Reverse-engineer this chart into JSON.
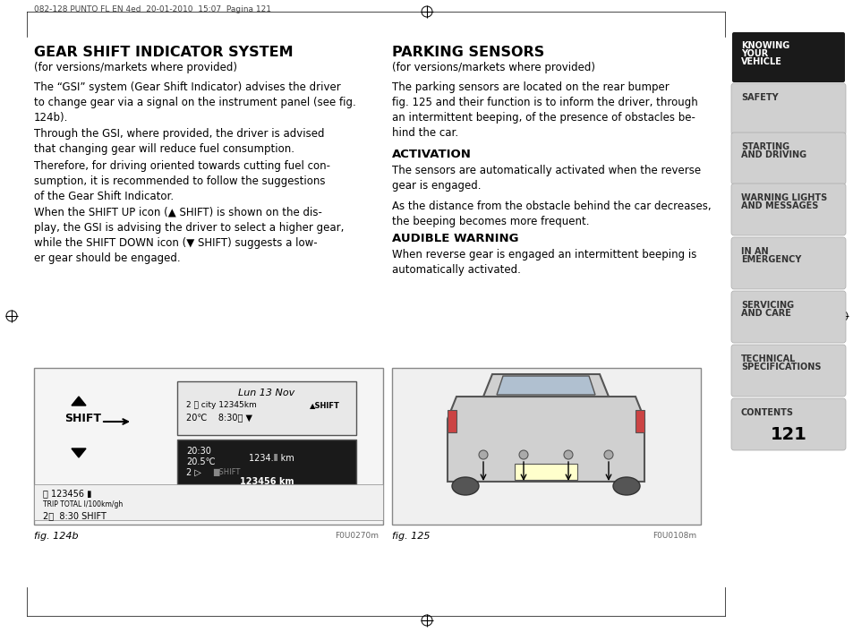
{
  "page_bg": "#ffffff",
  "header_text": "082-128 PUNTO FL EN 4ed  20-01-2010  15:07  Pagina 121",
  "left_section_title": "GEAR SHIFT INDICATOR SYSTEM",
  "left_subtitle": "(for versions/markets where provided)",
  "left_paragraphs": [
    "The “GSI” system (Gear Shift Indicator) advises the driver\nto change gear via a signal on the instrument panel (see fig.\n124b).",
    "Through the GSI, where provided, the driver is advised\nthat changing gear will reduce fuel consumption.",
    "Therefore, for driving oriented towards cutting fuel con-\nsumption, it is recommended to follow the suggestions\nof the Gear Shift Indicator.",
    "When the SHIFT UP icon (▲ SHIFT) is shown on the dis-\nplay, the GSI is advising the driver to select a higher gear,\nwhile the SHIFT DOWN icon (▼ SHIFT) suggests a low-\ner gear should be engaged."
  ],
  "right_section_title": "PARKING SENSORS",
  "right_subtitle": "(for versions/markets where provided)",
  "right_paragraph": "The parking sensors are located on the rear bumper\nfig. 125 and their function is to inform the driver, through\nan intermittent beeping, of the presence of obstacles be-\nhind the car.",
  "activation_title": "ACTIVATION",
  "activation_paragraphs": [
    "The sensors are automatically activated when the reverse\ngear is engaged.",
    "As the distance from the obstacle behind the car decreases,\nthe beeping becomes more frequent."
  ],
  "audible_title": "AUDIBLE WARNING",
  "audible_paragraph": "When reverse gear is engaged an intermittent beeping is\nautomatically activated.",
  "fig124b_label": "fig. 124b",
  "fig124b_code": "F0U0270m",
  "fig125_label": "fig. 125",
  "fig125_code": "F0U0108m",
  "page_number": "121",
  "sidebar_items": [
    {
      "text": "KNOWING\nYOUR\nVEHICLE",
      "active": true
    },
    {
      "text": "SAFETY",
      "active": false
    },
    {
      "text": "STARTING\nAND DRIVING",
      "active": false
    },
    {
      "text": "WARNING LIGHTS\nAND MESSAGES",
      "active": false
    },
    {
      "text": "IN AN\nEMERGENCY",
      "active": false
    },
    {
      "text": "SERVICING\nAND CARE",
      "active": false
    },
    {
      "text": "TECHNICAL\nSPECIFICATIONS",
      "active": false
    },
    {
      "text": "CONTENTS",
      "active": false
    }
  ],
  "sidebar_active_bg": "#1a1a1a",
  "sidebar_inactive_bg": "#d0d0d0",
  "sidebar_active_fg": "#ffffff",
  "sidebar_inactive_fg": "#333333"
}
